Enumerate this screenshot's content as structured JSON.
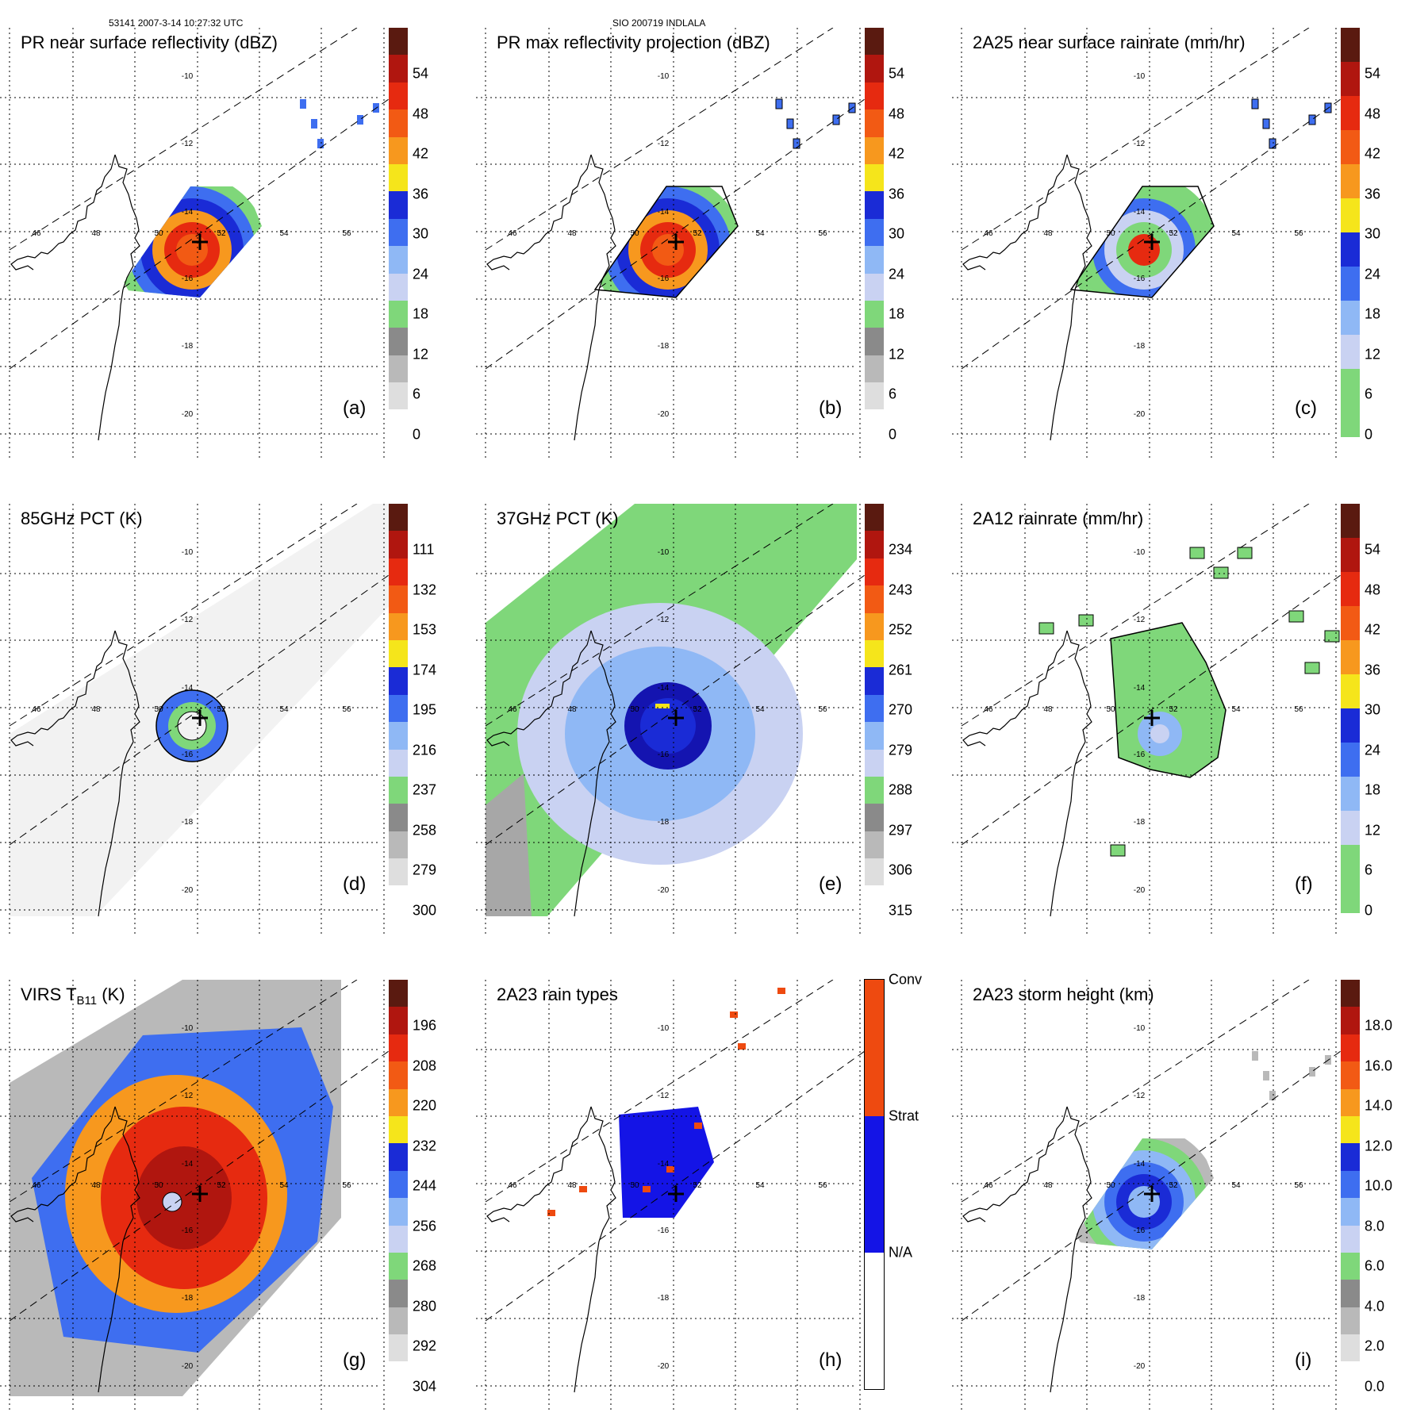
{
  "header": {
    "left": "53141 2007-3-14 10:27:32 UTC",
    "center": "SIO 200719 INDLALA"
  },
  "map_labels": {
    "lon": [
      "46",
      "48",
      "50",
      "52",
      "54",
      "56"
    ],
    "lat": [
      "-10",
      "-12",
      "-14",
      "-16",
      "-18",
      "-20"
    ]
  },
  "panels": [
    {
      "id": "a",
      "title": "PR near surface reflectivity (dBZ)",
      "label": "(a)",
      "ticks": [
        "54",
        "48",
        "42",
        "36",
        "30",
        "24",
        "18",
        "12",
        "6",
        "0"
      ],
      "colors": [
        "#5a1a10",
        "#b0160f",
        "#e62a10",
        "#f25a14",
        "#f7981e",
        "#f5e51b",
        "#1a2bd6",
        "#3e6ef0",
        "#8fb8f5",
        "#c9d2f2",
        "#7fd77a",
        "#8a8a8a",
        "#b9b9b9",
        "#dedede",
        "#ffffff"
      ]
    },
    {
      "id": "b",
      "title": "PR max reflectivity projection (dBZ)",
      "label": "(b)",
      "ticks": [
        "54",
        "48",
        "42",
        "36",
        "30",
        "24",
        "18",
        "12",
        "6",
        "0"
      ],
      "colors": [
        "#5a1a10",
        "#b0160f",
        "#e62a10",
        "#f25a14",
        "#f7981e",
        "#f5e51b",
        "#1a2bd6",
        "#3e6ef0",
        "#8fb8f5",
        "#c9d2f2",
        "#7fd77a",
        "#8a8a8a",
        "#b9b9b9",
        "#dedede",
        "#ffffff"
      ]
    },
    {
      "id": "c",
      "title": "2A25 near surface rainrate (mm/hr)",
      "label": "(c)",
      "ticks": [
        "54",
        "48",
        "42",
        "36",
        "30",
        "24",
        "18",
        "12",
        "6",
        "0"
      ],
      "colors": [
        "#5a1a10",
        "#b0160f",
        "#e62a10",
        "#f25a14",
        "#f7981e",
        "#f5e51b",
        "#1a2bd6",
        "#3e6ef0",
        "#8fb8f5",
        "#c9d2f2",
        "#7fd77a",
        "#7fd77a"
      ]
    },
    {
      "id": "d",
      "title": "85GHz PCT (K)",
      "label": "(d)",
      "ticks": [
        "111",
        "132",
        "153",
        "174",
        "195",
        "216",
        "237",
        "258",
        "279",
        "300"
      ],
      "colors": [
        "#5a1a10",
        "#b0160f",
        "#e62a10",
        "#f25a14",
        "#f7981e",
        "#f5e51b",
        "#1a2bd6",
        "#3e6ef0",
        "#8fb8f5",
        "#c9d2f2",
        "#7fd77a",
        "#8a8a8a",
        "#b9b9b9",
        "#dedede",
        "#ffffff"
      ]
    },
    {
      "id": "e",
      "title": "37GHz PCT (K)",
      "label": "(e)",
      "ticks": [
        "234",
        "243",
        "252",
        "261",
        "270",
        "279",
        "288",
        "297",
        "306",
        "315"
      ],
      "colors": [
        "#5a1a10",
        "#b0160f",
        "#e62a10",
        "#f25a14",
        "#f7981e",
        "#f5e51b",
        "#1a2bd6",
        "#3e6ef0",
        "#8fb8f5",
        "#c9d2f2",
        "#7fd77a",
        "#8a8a8a",
        "#b9b9b9",
        "#dedede",
        "#ffffff"
      ]
    },
    {
      "id": "f",
      "title": "2A12 rainrate (mm/hr)",
      "label": "(f)",
      "ticks": [
        "54",
        "48",
        "42",
        "36",
        "30",
        "24",
        "18",
        "12",
        "6",
        "0"
      ],
      "colors": [
        "#5a1a10",
        "#b0160f",
        "#e62a10",
        "#f25a14",
        "#f7981e",
        "#f5e51b",
        "#1a2bd6",
        "#3e6ef0",
        "#8fb8f5",
        "#c9d2f2",
        "#7fd77a",
        "#7fd77a"
      ]
    },
    {
      "id": "g",
      "title_main": "VIRS T",
      "title_sub": "B11",
      "title_tail": " (K)",
      "label": "(g)",
      "ticks": [
        "196",
        "208",
        "220",
        "232",
        "244",
        "256",
        "268",
        "280",
        "292",
        "304"
      ],
      "colors": [
        "#5a1a10",
        "#b0160f",
        "#e62a10",
        "#f25a14",
        "#f7981e",
        "#f5e51b",
        "#1a2bd6",
        "#3e6ef0",
        "#8fb8f5",
        "#c9d2f2",
        "#7fd77a",
        "#8a8a8a",
        "#b9b9b9",
        "#dedede",
        "#ffffff"
      ]
    },
    {
      "id": "h",
      "title": "2A23 rain types",
      "label": "(h)",
      "ticks": [
        "Conv",
        "Strat",
        "N/A"
      ],
      "colors": [
        "#ee4a10",
        "#1414e6",
        "#ffffff"
      ]
    },
    {
      "id": "i",
      "title": "2A23 storm height (km)",
      "label": "(i)",
      "ticks": [
        "18.0",
        "16.0",
        "14.0",
        "12.0",
        "10.0",
        "8.0",
        "6.0",
        "4.0",
        "2.0",
        "0.0"
      ],
      "colors": [
        "#5a1a10",
        "#b0160f",
        "#e62a10",
        "#f25a14",
        "#f7981e",
        "#f5e51b",
        "#1a2bd6",
        "#3e6ef0",
        "#8fb8f5",
        "#c9d2f2",
        "#7fd77a",
        "#8a8a8a",
        "#b9b9b9",
        "#dedede",
        "#ffffff"
      ]
    }
  ]
}
